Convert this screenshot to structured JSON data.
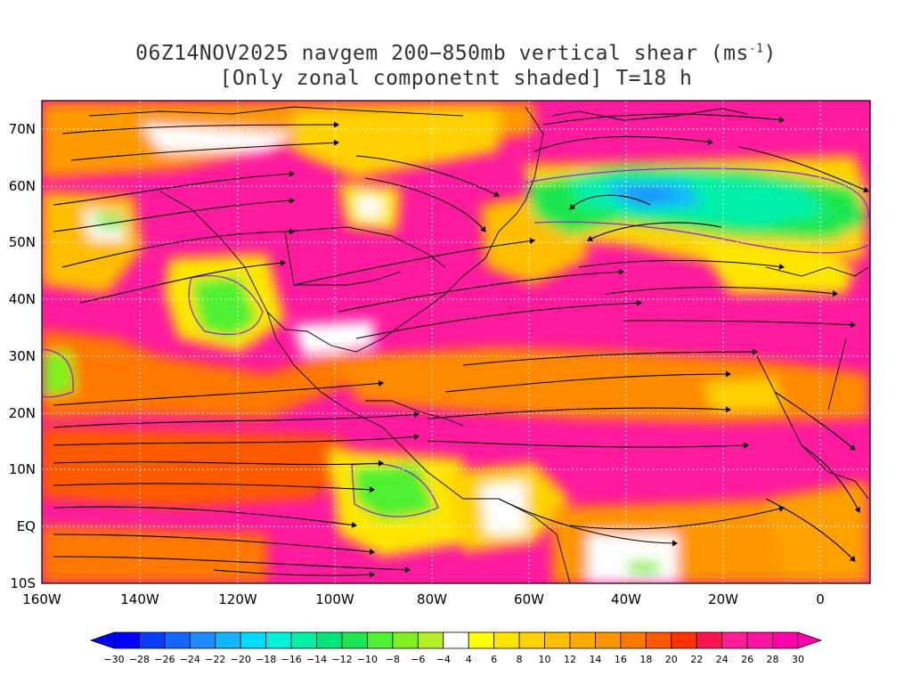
{
  "title": {
    "line1_prefix": "06Z14NOV2025 navgem 200−850mb vertical shear (ms",
    "line1_sup": "-1",
    "line1_suffix": ")",
    "line2": "[Only zonal componetnt shaded] T=18 h"
  },
  "map": {
    "lon_range": [
      -160,
      10
    ],
    "lat_range": [
      -10,
      75
    ],
    "lat_labels": [
      "70N",
      "60N",
      "50N",
      "40N",
      "30N",
      "20N",
      "10N",
      "EQ",
      "10S"
    ],
    "lat_values": [
      70,
      60,
      50,
      40,
      30,
      20,
      10,
      0,
      -10
    ],
    "lon_labels": [
      "160W",
      "140W",
      "120W",
      "100W",
      "80W",
      "60W",
      "40W",
      "20W",
      "0"
    ],
    "lon_values": [
      -160,
      -140,
      -120,
      -100,
      -80,
      -60,
      -40,
      -20,
      0
    ]
  },
  "colorbar": {
    "labels": [
      "−30",
      "−28",
      "−26",
      "−24",
      "−22",
      "−20",
      "−18",
      "−16",
      "−14",
      "−12",
      "−10",
      "−8",
      "−6",
      "−4",
      "4",
      "6",
      "8",
      "10",
      "12",
      "14",
      "16",
      "18",
      "20",
      "22",
      "24",
      "26",
      "28",
      "30"
    ],
    "colors": [
      "#0000ff",
      "#0a3cff",
      "#1565ff",
      "#1e8cff",
      "#14b4ff",
      "#00dcff",
      "#00f0dc",
      "#00f0aa",
      "#00e678",
      "#1ee650",
      "#50f032",
      "#82f01e",
      "#b4f028",
      "#ffffff",
      "#ffff00",
      "#ffe600",
      "#ffd200",
      "#ffbe00",
      "#ffaa00",
      "#ff9600",
      "#ff7800",
      "#ff5a00",
      "#ff3200",
      "#ff1450",
      "#ff1e96",
      "#ff14a0",
      "#ff00aa"
    ]
  }
}
